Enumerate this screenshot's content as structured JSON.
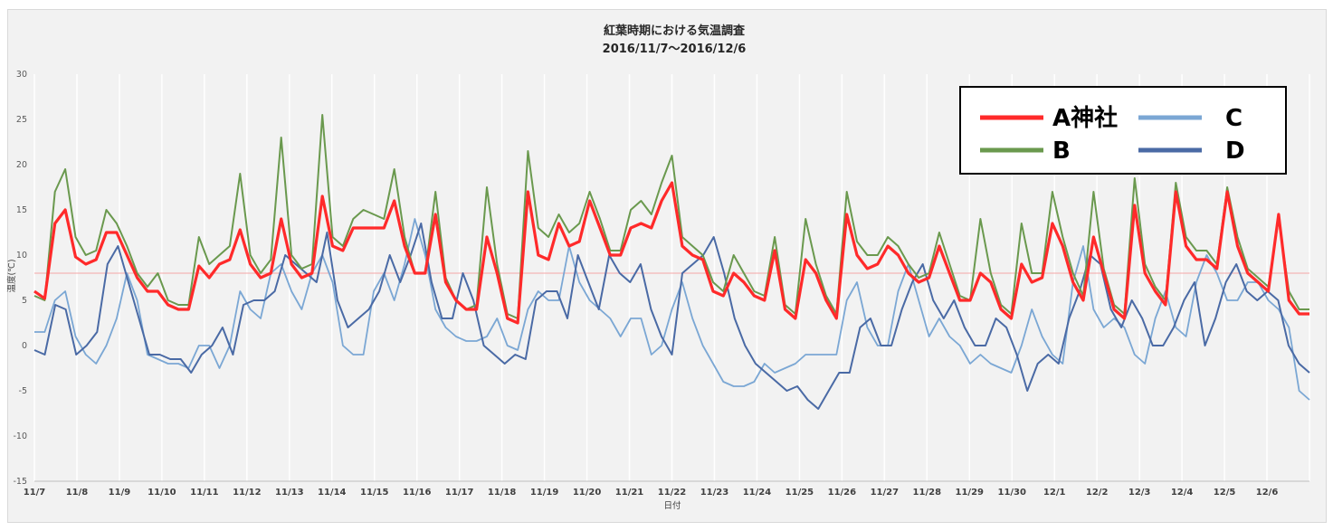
{
  "chart_data": {
    "type": "line",
    "title": "紅葉時期における気温調査",
    "subtitle": "2016/11/7〜2016/12/6",
    "xlabel": "日付",
    "ylabel": "温度(℃)",
    "ylim": [
      -15,
      30
    ],
    "yticks": [
      -15,
      -10,
      -5,
      0,
      5,
      10,
      15,
      20,
      25,
      30
    ],
    "x_tick_labels": [
      "11/7",
      "11/8",
      "11/9",
      "11/10",
      "11/11",
      "11/12",
      "11/13",
      "11/14",
      "11/15",
      "11/16",
      "11/17",
      "11/18",
      "11/19",
      "11/20",
      "11/21",
      "11/22",
      "11/23",
      "11/24",
      "11/25",
      "11/26",
      "11/27",
      "11/28",
      "11/29",
      "11/30",
      "12/1",
      "12/2",
      "12/3",
      "12/4",
      "12/5",
      "12/6"
    ],
    "reference_line": {
      "y": 8,
      "color": "#f4a6a6"
    },
    "grid": "vertical",
    "legend_position": "top-right",
    "series": [
      {
        "name": "A神社",
        "color": "#ff2a2a",
        "values": [
          6,
          5.2,
          13.5,
          15,
          9.8,
          9,
          9.5,
          12.5,
          12.5,
          10,
          7.5,
          6,
          6,
          4.5,
          4,
          4,
          8.8,
          7.5,
          9,
          9.5,
          12.8,
          9,
          7.5,
          8,
          14,
          9,
          7.5,
          8,
          16.5,
          11,
          10.5,
          13,
          13,
          13,
          13,
          16,
          11,
          8,
          8,
          14.5,
          7,
          5,
          4,
          4,
          12,
          8,
          3,
          2.5,
          17,
          10,
          9.5,
          13.5,
          11,
          11.5,
          16,
          13,
          10,
          10,
          13,
          13.5,
          13,
          16,
          18,
          11,
          10,
          9.5,
          6,
          5.5,
          8,
          7,
          5.5,
          5,
          10.5,
          4,
          3,
          9.5,
          8,
          5,
          3,
          14.5,
          10,
          8.5,
          9,
          11,
          10,
          8,
          7,
          7.5,
          11,
          8,
          5,
          5,
          8,
          7,
          4,
          3,
          9,
          7,
          7.5,
          13.5,
          11,
          7,
          5,
          12,
          8,
          4,
          3,
          15.5,
          8,
          6,
          4.5,
          17,
          11,
          9.5,
          9.5,
          8.5,
          17,
          11,
          8,
          7,
          6,
          14.5,
          5,
          3.5,
          3.5
        ]
      },
      {
        "name": "B",
        "color": "#6a994e",
        "values": [
          5.5,
          5,
          17,
          19.5,
          12,
          10,
          10.5,
          15,
          13.5,
          11,
          8,
          6.5,
          8,
          5,
          4.5,
          4.5,
          12,
          9,
          10,
          11,
          19,
          10,
          8,
          9.5,
          23,
          10,
          8.5,
          9,
          25.5,
          12,
          11,
          14,
          15,
          14.5,
          14,
          19.5,
          12,
          8,
          8,
          17,
          7.5,
          5,
          4,
          4.5,
          17.5,
          9,
          3.5,
          3,
          21.5,
          13,
          12,
          14.5,
          12.5,
          13.5,
          17,
          14,
          10.5,
          10.5,
          15,
          16,
          14.5,
          18,
          21,
          12,
          11,
          10,
          7,
          6,
          10,
          8,
          6,
          5.5,
          12,
          4.5,
          3.5,
          14,
          9,
          5.5,
          3.5,
          17,
          11.5,
          10,
          10,
          12,
          11,
          9,
          7.5,
          8,
          12.5,
          9,
          5.5,
          5,
          14,
          8,
          4.5,
          3.5,
          13.5,
          8,
          8,
          17,
          12,
          8,
          5.5,
          17,
          8.5,
          4.5,
          3.5,
          18.5,
          9,
          6.5,
          5,
          18,
          12,
          10.5,
          10.5,
          9,
          17.5,
          12,
          8.5,
          7.5,
          6.5,
          14,
          6,
          4,
          4
        ]
      },
      {
        "name": "C",
        "color": "#7ba7d4",
        "values": [
          1.5,
          1.5,
          5,
          6,
          1,
          -1,
          -2,
          0,
          3,
          8,
          5,
          -1,
          -1.5,
          -2,
          -2,
          -2.5,
          0,
          0,
          -2.5,
          0,
          6,
          4,
          3,
          8,
          9,
          6,
          4,
          8,
          10,
          7,
          0,
          -1,
          -1,
          6,
          8,
          5,
          9,
          14,
          10,
          4,
          2,
          1,
          0.5,
          0.5,
          1,
          3,
          0,
          -0.5,
          4,
          6,
          5,
          5,
          11,
          7,
          5,
          4,
          3,
          1,
          3,
          3,
          -1,
          0,
          4,
          7,
          3,
          0,
          -2,
          -4,
          -4.5,
          -4.5,
          -4,
          -2,
          -3,
          -2.5,
          -2,
          -1,
          -1,
          -1,
          -1,
          5,
          7,
          2,
          0,
          0,
          6,
          9,
          5,
          1,
          3,
          1,
          0,
          -2,
          -1,
          -2,
          -2.5,
          -3,
          0,
          4,
          1,
          -1,
          -2,
          7,
          11,
          4,
          2,
          3,
          2,
          -1,
          -2,
          3,
          6,
          2,
          1,
          7,
          10,
          8,
          5,
          5,
          7,
          7,
          5,
          4,
          2,
          -5,
          -6
        ]
      },
      {
        "name": "D",
        "color": "#4a6aa5",
        "values": [
          -0.5,
          -1,
          4.5,
          4,
          -1,
          0,
          1.5,
          9,
          11,
          7,
          3,
          -1,
          -1,
          -1.5,
          -1.5,
          -3,
          -1,
          0,
          2,
          -1,
          4.5,
          5,
          5,
          6,
          10,
          9,
          8,
          7,
          12.5,
          5,
          2,
          3,
          4,
          6,
          10,
          7,
          10,
          13.5,
          7,
          3,
          3,
          8,
          5,
          0,
          -1,
          -2,
          -1,
          -1.5,
          5,
          6,
          6,
          3,
          10,
          7,
          4,
          10,
          8,
          7,
          9,
          4,
          1,
          -1,
          8,
          9,
          10,
          12,
          8,
          3,
          0,
          -2,
          -3,
          -4,
          -5,
          -4.5,
          -6,
          -7,
          -5,
          -3,
          -3,
          2,
          3,
          0,
          0,
          4,
          7,
          9,
          5,
          3,
          5,
          2,
          0,
          0,
          3,
          2,
          -1,
          -5,
          -2,
          -1,
          -2,
          3,
          6,
          10,
          9,
          4,
          2,
          5,
          3,
          0,
          0,
          2,
          5,
          7,
          0,
          3,
          7,
          9,
          6,
          5,
          6,
          5,
          0,
          -2,
          -3
        ]
      }
    ]
  }
}
